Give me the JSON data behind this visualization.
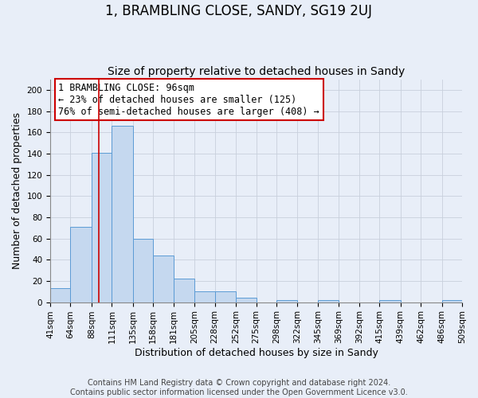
{
  "title": "1, BRAMBLING CLOSE, SANDY, SG19 2UJ",
  "subtitle": "Size of property relative to detached houses in Sandy",
  "xlabel": "Distribution of detached houses by size in Sandy",
  "ylabel": "Number of detached properties",
  "footer_line1": "Contains HM Land Registry data © Crown copyright and database right 2024.",
  "footer_line2": "Contains public sector information licensed under the Open Government Licence v3.0.",
  "bin_labels": [
    "41sqm",
    "64sqm",
    "88sqm",
    "111sqm",
    "135sqm",
    "158sqm",
    "181sqm",
    "205sqm",
    "228sqm",
    "252sqm",
    "275sqm",
    "298sqm",
    "322sqm",
    "345sqm",
    "369sqm",
    "392sqm",
    "415sqm",
    "439sqm",
    "462sqm",
    "486sqm",
    "509sqm"
  ],
  "bar_values": [
    13,
    71,
    141,
    166,
    60,
    44,
    22,
    10,
    10,
    4,
    0,
    2,
    0,
    2,
    0,
    0,
    2,
    0,
    0,
    2
  ],
  "bin_edges": [
    41,
    64,
    88,
    111,
    135,
    158,
    181,
    205,
    228,
    252,
    275,
    298,
    322,
    345,
    369,
    392,
    415,
    439,
    462,
    486,
    509
  ],
  "bar_color": "#c5d8ef",
  "bar_edge_color": "#5b9bd5",
  "property_line_x": 96,
  "property_line_color": "#cc0000",
  "annotation_text": "1 BRAMBLING CLOSE: 96sqm\n← 23% of detached houses are smaller (125)\n76% of semi-detached houses are larger (408) →",
  "ylim": [
    0,
    210
  ],
  "yticks": [
    0,
    20,
    40,
    60,
    80,
    100,
    120,
    140,
    160,
    180,
    200
  ],
  "background_color": "#e8eef8",
  "plot_background_color": "#e8eef8",
  "grid_color": "#c8d0dc",
  "title_fontsize": 12,
  "subtitle_fontsize": 10,
  "axis_label_fontsize": 9,
  "tick_fontsize": 7.5,
  "annotation_fontsize": 8.5,
  "footer_fontsize": 7
}
